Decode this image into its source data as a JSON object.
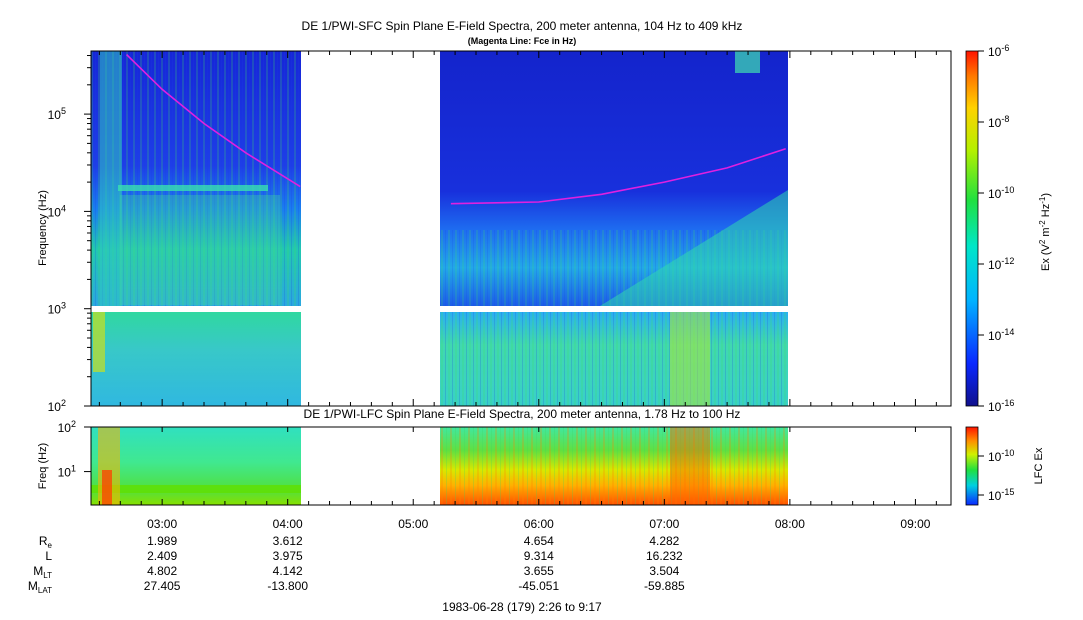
{
  "chart_data": [
    {
      "type": "heatmap",
      "title": "DE 1/PWI-SFC  Spin Plane E-Field Spectra, 200 meter antenna, 104 Hz to 409 kHz",
      "subtitle": "(Magenta Line: Fce in Hz)",
      "ylabel": "Frequency (Hz)",
      "yscale": "log",
      "ylim": [
        100,
        409000
      ],
      "y_ticks": [
        "10^2",
        "10^3",
        "10^4",
        "10^5"
      ],
      "x_range": [
        "02:26",
        "09:17"
      ],
      "data_gaps": [
        [
          "04:08",
          "05:18"
        ],
        [
          "07:58",
          "09:17"
        ]
      ],
      "fce_line": {
        "name": "Fce",
        "color": "#e020e0",
        "points": [
          {
            "x": "02:43",
            "y": 409000
          },
          {
            "x": "03:00",
            "y": 180000
          },
          {
            "x": "03:20",
            "y": 80000
          },
          {
            "x": "03:40",
            "y": 40000
          },
          {
            "x": "04:06",
            "y": 18000
          },
          {
            "x": "05:18",
            "y": 12000
          },
          {
            "x": "06:00",
            "y": 12500
          },
          {
            "x": "06:30",
            "y": 15000
          },
          {
            "x": "07:00",
            "y": 20000
          },
          {
            "x": "07:30",
            "y": 28000
          },
          {
            "x": "07:58",
            "y": 44000
          }
        ]
      },
      "colorbar": {
        "label_base": "Ex (V",
        "label_units": " m",
        "label_tail": " Hz",
        "label_close": ")",
        "scale": "log",
        "range": [
          "10^-16",
          "10^-6"
        ],
        "ticks": [
          {
            "base": "10",
            "exp": "-6"
          },
          {
            "base": "10",
            "exp": "-8"
          },
          {
            "base": "10",
            "exp": "-10"
          },
          {
            "base": "10",
            "exp": "-12"
          },
          {
            "base": "10",
            "exp": "-14"
          },
          {
            "base": "10",
            "exp": "-16"
          }
        ]
      }
    },
    {
      "type": "heatmap",
      "title": "DE 1/PWI-LFC  Spin Plane E-Field Spectra, 200 meter antenna, 1.78 Hz to 100 Hz",
      "ylabel": "Freq (Hz)",
      "yscale": "log",
      "ylim": [
        1.78,
        100
      ],
      "y_ticks": [
        "10^1",
        "10^2"
      ],
      "colorbar": {
        "label": "LFC Ex",
        "ticks": [
          {
            "base": "10",
            "exp": "-10"
          },
          {
            "base": "10",
            "exp": "-15"
          }
        ]
      }
    }
  ],
  "time_axis": {
    "ticks": [
      "03:00",
      "04:00",
      "05:00",
      "06:00",
      "07:00",
      "08:00",
      "09:00"
    ],
    "caption": "1983-06-28 (179) 2:26 to 9:17"
  },
  "ephemeris": {
    "rows": [
      {
        "label": "R",
        "sub": "e",
        "values": [
          "1.989",
          "3.612",
          "4.654",
          "4.282"
        ]
      },
      {
        "label": "L",
        "sub": "",
        "values": [
          "2.409",
          "3.975",
          "9.314",
          "16.232"
        ]
      },
      {
        "label": "M",
        "sub": "LT",
        "values": [
          "4.802",
          "4.142",
          "3.655",
          "3.504"
        ]
      },
      {
        "label": "M",
        "sub": "LAT",
        "values": [
          "27.405",
          "-13.800",
          "-45.051",
          "-59.885"
        ]
      }
    ],
    "value_times": [
      "03:00",
      "04:00",
      "06:00",
      "07:00"
    ]
  }
}
